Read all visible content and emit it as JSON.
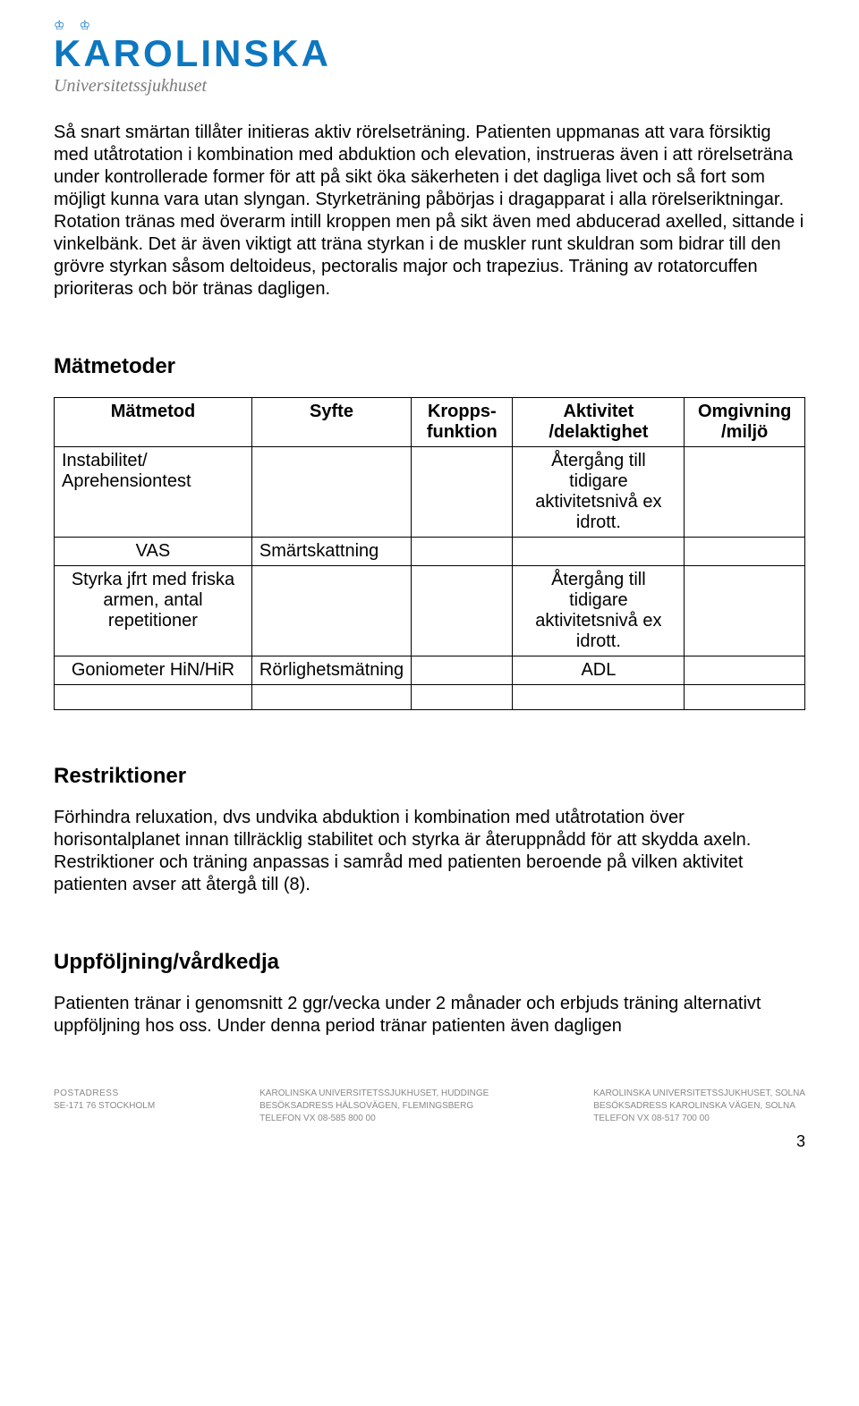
{
  "logo": {
    "crowns": "♔ ♔\n♔",
    "main": "KAROLINSKA",
    "sub": "Universitetssjukhuset"
  },
  "intro_paragraph": "Så snart smärtan tillåter initieras aktiv rörelseträning. Patienten uppmanas att vara försiktig med utåtrotation i kombination med abduktion och elevation, instrueras även i att rörelseträna under kontrollerade former för att på sikt öka säkerheten i det dagliga livet och så fort som möjligt kunna vara utan slyngan. Styrketräning påbörjas i dragapparat i alla rörelseriktningar. Rotation tränas med överarm intill kroppen men på sikt även med abducerad axelled, sittande i vinkelbänk. Det är även viktigt att träna styrkan i de muskler runt skuldran som bidrar till den grövre styrkan såsom deltoideus, pectoralis major och trapezius. Träning av rotatorcuffen prioriteras och bör tränas dagligen.",
  "sections": {
    "matmetoder": "Mätmetoder",
    "restriktioner": "Restriktioner",
    "uppfoljning": "Uppföljning/vårdkedja"
  },
  "table": {
    "headers": {
      "c1": "Mätmetod",
      "c2": "Syfte",
      "c3": "Kropps-funktion",
      "c4": "Aktivitet /delaktighet",
      "c5": "Omgivning /miljö"
    },
    "rows": [
      {
        "c1": "Instabilitet/ Aprehensiontest",
        "c2": "",
        "c3": "",
        "c4": "Återgång till tidigare aktivitetsnivå ex idrott.",
        "c5": ""
      },
      {
        "c1": "VAS",
        "c2": "Smärtskattning",
        "c3": "",
        "c4": "",
        "c5": ""
      },
      {
        "c1": "Styrka jfrt med friska armen, antal repetitioner",
        "c2": "",
        "c3": "",
        "c4": "Återgång till tidigare aktivitetsnivå ex idrott.",
        "c5": ""
      },
      {
        "c1": "Goniometer HiN/HiR",
        "c2": "Rörlighetsmätning",
        "c3": "",
        "c4": "ADL",
        "c5": ""
      }
    ]
  },
  "restriktioner_text": "Förhindra reluxation, dvs undvika abduktion i kombination med utåtrotation över horisontalplanet innan tillräcklig stabilitet och styrka är återuppnådd för att skydda axeln. Restriktioner och träning anpassas i samråd med patienten beroende på vilken aktivitet patienten avser att återgå till (8).",
  "uppfoljning_text": "Patienten tränar i genomsnitt 2 ggr/vecka under 2 månader och erbjuds träning alternativt uppföljning hos oss. Under denna period tränar patienten även dagligen",
  "footer": {
    "col1": {
      "l1": "POSTADRESS",
      "l2": "SE-171 76 STOCKHOLM"
    },
    "col2": {
      "l1": "KAROLINSKA UNIVERSITETSSJUKHUSET, HUDDINGE",
      "l2": "BESÖKSADRESS HÄLSOVÄGEN, FLEMINGSBERG",
      "l3": "TELEFON VX 08-585 800 00"
    },
    "col3": {
      "l1": "KAROLINSKA UNIVERSITETSSJUKHUSET, SOLNA",
      "l2": "BESÖKSADRESS KAROLINSKA VÄGEN, SOLNA",
      "l3": "TELEFON VX 08-517 700 00"
    }
  },
  "page_number": "3"
}
